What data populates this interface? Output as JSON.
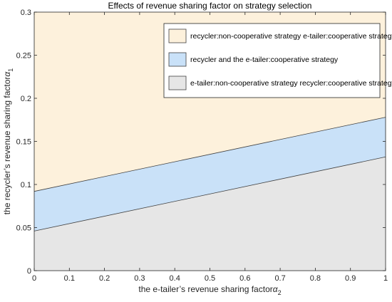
{
  "chart_data": {
    "type": "area",
    "title": "Effects of revenue sharing factor on strategy selection",
    "xlabel": "the e-tailer’s revenue sharing factor",
    "xlabel_symbol": "α",
    "xlabel_subscript": "2",
    "ylabel": "the recycler’s revenue sharing factor",
    "ylabel_symbol": "α",
    "ylabel_subscript": "1",
    "xlim": [
      0,
      1
    ],
    "ylim": [
      0,
      0.3
    ],
    "x_ticks": [
      "0",
      "0.1",
      "0.2",
      "0.3",
      "0.4",
      "0.5",
      "0.6",
      "0.7",
      "0.8",
      "0.9",
      "1"
    ],
    "x_tick_values": [
      0,
      0.1,
      0.2,
      0.3,
      0.4,
      0.5,
      0.6,
      0.7,
      0.8,
      0.9,
      1
    ],
    "y_ticks": [
      "0",
      "0.05",
      "0.1",
      "0.15",
      "0.2",
      "0.25",
      "0.3"
    ],
    "y_tick_values": [
      0,
      0.05,
      0.1,
      0.15,
      0.2,
      0.25,
      0.3
    ],
    "grid": false,
    "legend_position": "top-right",
    "boundaries": [
      {
        "x": [
          0,
          1
        ],
        "y": [
          0.046,
          0.132
        ]
      },
      {
        "x": [
          0,
          1
        ],
        "y": [
          0.092,
          0.178
        ]
      }
    ],
    "series": [
      {
        "name": "recycler:non-cooperative strategy e-tailer:cooperative strategy",
        "color": "#fdf1dc",
        "y_lower": [
          0.092,
          0.178
        ],
        "y_upper": [
          0.3,
          0.3
        ]
      },
      {
        "name": "recycler and the e-tailer:cooperative strategy",
        "color": "#c9e1f8",
        "y_lower": [
          0.046,
          0.132
        ],
        "y_upper": [
          0.092,
          0.178
        ]
      },
      {
        "name": "e-tailer:non-cooperative strategy recycler:cooperative strategy",
        "color": "#e6e6e6",
        "y_lower": [
          0,
          0
        ],
        "y_upper": [
          0.046,
          0.132
        ]
      }
    ]
  }
}
